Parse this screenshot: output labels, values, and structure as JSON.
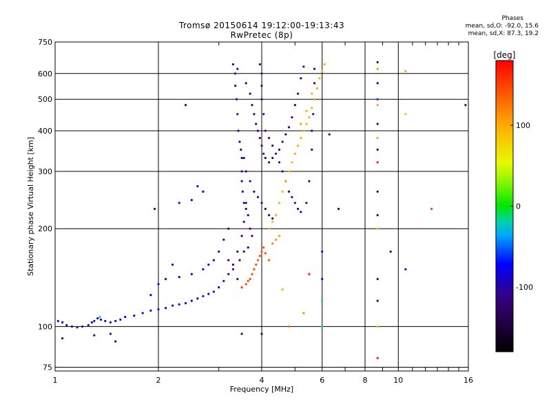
{
  "header": {
    "title_line1": "Tromsø 20150614 19:12:00-19:13:43",
    "title_line2": "RwPretec (8p)"
  },
  "stats": {
    "label": "Phases",
    "o_line": "mean, sd,O: -92.0, 15.6",
    "x_line": "mean, sd,X:  87.3, 19.2"
  },
  "chart_data": {
    "type": "scatter",
    "xlabel": "Frequency [MHz]",
    "ylabel": "Stationary phase Virtual Height [km]",
    "x_scale": "log",
    "y_scale": "log",
    "xlim": [
      1,
      16
    ],
    "ylim": [
      73,
      750
    ],
    "x_ticks": [
      1,
      2,
      4,
      6,
      8,
      10,
      16
    ],
    "y_ticks": [
      75,
      100,
      200,
      300,
      400,
      500,
      600,
      750
    ],
    "grid": true,
    "colorbar": {
      "label": "[deg]",
      "range": [
        -180,
        180
      ],
      "ticks": [
        100,
        0,
        -100
      ],
      "colormap": "rainbow: black -100deg... blue, cyan, green 0, yellow 100, red 180"
    },
    "series": [
      {
        "points": [
          [
            1.02,
            104,
            -95
          ],
          [
            1.05,
            103,
            -100
          ],
          [
            1.08,
            101,
            -98
          ],
          [
            1.12,
            100,
            -105
          ],
          [
            1.16,
            99.5,
            -100
          ],
          [
            1.2,
            100,
            -95
          ],
          [
            1.25,
            101,
            -98
          ],
          [
            1.28,
            103,
            -102
          ],
          [
            1.3,
            104,
            -96
          ],
          [
            1.33,
            106,
            -100
          ],
          [
            1.36,
            105,
            -90
          ],
          [
            1.4,
            104,
            -92
          ],
          [
            1.45,
            103,
            -100
          ],
          [
            1.5,
            104,
            -95
          ],
          [
            1.55,
            105,
            -90
          ],
          [
            1.6,
            107,
            -92
          ],
          [
            1.7,
            108,
            -88
          ],
          [
            1.8,
            110,
            -95
          ],
          [
            1.9,
            112,
            -90
          ],
          [
            2.0,
            113,
            -92
          ],
          [
            2.1,
            114,
            -88
          ],
          [
            2.2,
            116,
            -90
          ],
          [
            2.3,
            117,
            -92
          ],
          [
            2.4,
            118,
            -85
          ],
          [
            2.5,
            120,
            -88
          ],
          [
            2.6,
            122,
            -90
          ],
          [
            2.7,
            124,
            -85
          ],
          [
            2.8,
            126,
            -88
          ],
          [
            2.9,
            128,
            -86
          ],
          [
            3.0,
            132,
            -90
          ],
          [
            3.1,
            138,
            -95
          ],
          [
            3.2,
            145,
            -100
          ],
          [
            3.3,
            155,
            -105
          ],
          [
            3.4,
            170,
            -110
          ],
          [
            3.5,
            190,
            -112
          ],
          [
            3.55,
            210,
            -115
          ],
          [
            3.6,
            240,
            -118
          ],
          [
            1.9,
            125,
            -80
          ],
          [
            2.0,
            135,
            -85
          ],
          [
            2.1,
            140,
            -90
          ],
          [
            2.3,
            142,
            -82
          ],
          [
            2.5,
            145,
            -85
          ],
          [
            2.7,
            150,
            -80
          ],
          [
            2.8,
            155,
            -88
          ],
          [
            2.9,
            160,
            -92
          ],
          [
            3.0,
            170,
            -95
          ],
          [
            3.1,
            185,
            -100
          ],
          [
            3.2,
            200,
            -105
          ],
          [
            1.95,
            230,
            -100
          ],
          [
            2.3,
            240,
            -95
          ],
          [
            2.5,
            245,
            -90
          ],
          [
            2.7,
            260,
            -92
          ],
          [
            1.05,
            92,
            -110
          ],
          [
            1.3,
            94,
            -105
          ],
          [
            1.45,
            95,
            -100
          ],
          [
            1.5,
            90,
            -95
          ],
          [
            2.4,
            480,
            -110
          ]
        ]
      },
      {
        "points": [
          [
            3.35,
            600,
            -110
          ],
          [
            3.35,
            550,
            -112
          ],
          [
            3.38,
            500,
            -108
          ],
          [
            3.4,
            450,
            -110
          ],
          [
            3.42,
            400,
            -115
          ],
          [
            3.45,
            370,
            -110
          ],
          [
            3.48,
            350,
            -112
          ],
          [
            3.5,
            330,
            -110
          ],
          [
            3.5,
            300,
            -115
          ],
          [
            3.5,
            280,
            -118
          ],
          [
            3.52,
            260,
            -112
          ],
          [
            3.55,
            240,
            -110
          ],
          [
            3.6,
            230,
            -115
          ],
          [
            3.65,
            220,
            -110
          ],
          [
            3.7,
            200,
            -112
          ],
          [
            3.75,
            190,
            -115
          ],
          [
            3.3,
            640,
            -108
          ],
          [
            3.4,
            620,
            -110
          ],
          [
            3.6,
            560,
            -112
          ],
          [
            3.7,
            520,
            -110
          ],
          [
            3.75,
            480,
            -115
          ],
          [
            3.8,
            450,
            -112
          ],
          [
            3.85,
            420,
            -110
          ],
          [
            3.9,
            400,
            -108
          ],
          [
            3.95,
            380,
            -110
          ],
          [
            4.0,
            360,
            -112
          ],
          [
            4.05,
            340,
            -115
          ],
          [
            4.1,
            330,
            -110
          ],
          [
            4.2,
            320,
            -112
          ],
          [
            4.3,
            330,
            -110
          ],
          [
            4.4,
            340,
            -108
          ],
          [
            4.5,
            350,
            -110
          ],
          [
            4.6,
            370,
            -112
          ],
          [
            4.7,
            390,
            -115
          ],
          [
            4.8,
            410,
            -110
          ],
          [
            4.9,
            440,
            -108
          ],
          [
            5.0,
            480,
            -110
          ],
          [
            5.1,
            520,
            -112
          ],
          [
            5.2,
            580,
            -110
          ],
          [
            5.3,
            630,
            -108
          ],
          [
            3.95,
            640,
            -112
          ],
          [
            4.0,
            600,
            -110
          ],
          [
            4.0,
            550,
            -112
          ],
          [
            4.0,
            500,
            -108
          ],
          [
            4.05,
            450,
            -110
          ],
          [
            4.1,
            400,
            -115
          ],
          [
            4.2,
            380,
            -112
          ],
          [
            4.3,
            360,
            -110
          ],
          [
            4.5,
            320,
            -112
          ],
          [
            4.6,
            300,
            -115
          ],
          [
            4.7,
            280,
            -110
          ],
          [
            4.8,
            260,
            -112
          ],
          [
            4.9,
            250,
            -110
          ],
          [
            5.0,
            240,
            -112
          ],
          [
            5.1,
            230,
            -108
          ],
          [
            5.2,
            225,
            -110
          ],
          [
            5.4,
            240,
            -112
          ],
          [
            5.5,
            280,
            -110
          ],
          [
            5.6,
            350,
            -112
          ],
          [
            5.6,
            400,
            -110
          ],
          [
            5.65,
            450,
            -112
          ],
          [
            5.7,
            500,
            -110
          ],
          [
            5.7,
            560,
            -112
          ],
          [
            5.7,
            620,
            -110
          ],
          [
            3.55,
            330,
            -112
          ],
          [
            3.6,
            300,
            -110
          ],
          [
            3.7,
            280,
            -112
          ],
          [
            3.8,
            260,
            -110
          ],
          [
            3.9,
            250,
            -112
          ],
          [
            4.0,
            240,
            -115
          ],
          [
            4.1,
            230,
            -110
          ],
          [
            4.2,
            220,
            -112
          ],
          [
            4.3,
            215,
            -110
          ],
          [
            3.45,
            160,
            -115
          ],
          [
            3.55,
            170,
            -112
          ],
          [
            3.65,
            175,
            -110
          ],
          [
            3.2,
            160,
            -115
          ],
          [
            3.3,
            150,
            -118
          ],
          [
            3.4,
            140,
            -112
          ]
        ]
      },
      {
        "points": [
          [
            3.7,
            140,
            150
          ],
          [
            3.75,
            145,
            145
          ],
          [
            3.8,
            150,
            148
          ],
          [
            3.85,
            155,
            142
          ],
          [
            3.9,
            160,
            140
          ],
          [
            3.95,
            165,
            145
          ],
          [
            4.0,
            170,
            138
          ],
          [
            4.05,
            175,
            142
          ],
          [
            4.1,
            168,
            145
          ],
          [
            4.2,
            160,
            140
          ],
          [
            3.6,
            135,
            150
          ],
          [
            3.65,
            138,
            148
          ],
          [
            3.5,
            132,
            152
          ],
          [
            4.3,
            180,
            120
          ],
          [
            4.4,
            185,
            110
          ],
          [
            4.5,
            190,
            105
          ],
          [
            4.2,
            200,
            100
          ],
          [
            4.3,
            210,
            95
          ],
          [
            4.4,
            220,
            100
          ],
          [
            4.5,
            240,
            98
          ],
          [
            4.6,
            260,
            95
          ],
          [
            4.7,
            280,
            100
          ],
          [
            4.8,
            300,
            98
          ],
          [
            4.9,
            320,
            95
          ],
          [
            5.0,
            340,
            100
          ],
          [
            5.1,
            360,
            98
          ],
          [
            5.2,
            380,
            95
          ],
          [
            5.3,
            400,
            100
          ],
          [
            5.4,
            420,
            98
          ],
          [
            5.5,
            440,
            95
          ],
          [
            5.6,
            470,
            100
          ],
          [
            5.7,
            500,
            98
          ],
          [
            5.8,
            540,
            95
          ],
          [
            5.9,
            580,
            100
          ],
          [
            6.0,
            610,
            98
          ],
          [
            6.1,
            640,
            95
          ],
          [
            5.2,
            420,
            105
          ],
          [
            5.4,
            460,
            102
          ],
          [
            5.6,
            520,
            100
          ],
          [
            4.6,
            130,
            100
          ],
          [
            8.7,
            620,
            110
          ],
          [
            8.7,
            480,
            105
          ],
          [
            8.7,
            380,
            100
          ],
          [
            8.7,
            200,
            98
          ],
          [
            8.7,
            100,
            92
          ],
          [
            10.5,
            450,
            95
          ],
          [
            10.5,
            610,
            105
          ],
          [
            12.5,
            230,
            150
          ],
          [
            4.8,
            100,
            120
          ],
          [
            5.3,
            110,
            115
          ]
        ]
      },
      {
        "points": [
          [
            8.7,
            650,
            -120
          ],
          [
            8.7,
            560,
            -110
          ],
          [
            8.7,
            500,
            -60
          ],
          [
            8.7,
            420,
            -110
          ],
          [
            8.7,
            350,
            -115
          ],
          [
            8.7,
            320,
            170
          ],
          [
            8.7,
            260,
            -110
          ],
          [
            8.7,
            220,
            -112
          ],
          [
            8.7,
            140,
            -110
          ],
          [
            8.7,
            120,
            -115
          ],
          [
            8.7,
            80,
            170
          ],
          [
            6.0,
            170,
            -100
          ],
          [
            6.0,
            140,
            -90
          ],
          [
            6.0,
            120,
            -20
          ],
          [
            6.0,
            100,
            -10
          ],
          [
            5.5,
            145,
            170
          ],
          [
            6.7,
            230,
            -110
          ],
          [
            9.5,
            170,
            -110
          ],
          [
            10.5,
            150,
            -100
          ],
          [
            15.7,
            480,
            -110
          ],
          [
            6.3,
            390,
            -110
          ],
          [
            4.0,
            95,
            -110
          ],
          [
            3.5,
            95,
            -112
          ],
          [
            1.35,
            107,
            -30
          ],
          [
            2.2,
            155,
            -90
          ],
          [
            2.6,
            270,
            -80
          ]
        ]
      }
    ]
  }
}
